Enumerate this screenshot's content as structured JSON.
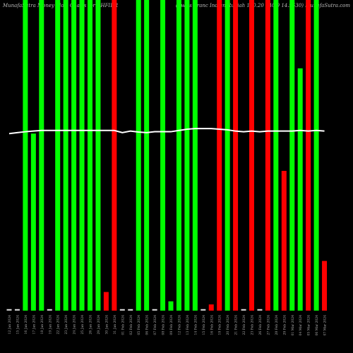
{
  "chart_data": {
    "type": "bar",
    "title": "MunafaSutra Money Flow Charts for CHFIDR",
    "subtitle": "(Swiss Franc Indian Rupiah 140.20 140.0 14.9530) MunafaSutra.com",
    "categories": [
      "12 Jan 2024",
      "15 Jan 2024",
      "16 Jan 2024",
      "17 Jan 2024",
      "18 Jan 2024",
      "19 Jan 2024",
      "22 Jan 2024",
      "23 Jan 2024",
      "24 Jan 2024",
      "25 Jan 2024",
      "26 Jan 2024",
      "29 Jan 2024",
      "30 Jan 2024",
      "31 Jan 2024",
      "01 Feb 2024",
      "02 Feb 2024",
      "05 Feb 2024",
      "06 Feb 2024",
      "07 Feb 2024",
      "08 Feb 2024",
      "09 Feb 2024",
      "12 Feb 2024",
      "13 Feb 2024",
      "14 Feb 2024",
      "15 Feb 2024",
      "16 Feb 2024",
      "19 Feb 2024",
      "20 Feb 2024",
      "21 Feb 2024",
      "22 Feb 2024",
      "23 Feb 2024",
      "26 Feb 2024",
      "27 Feb 2024",
      "28 Feb 2024",
      "29 Feb 2024",
      "01 Mar 2024",
      "04 Mar 2024",
      "05 Mar 2024",
      "06 Mar 2024",
      "07 Mar 2024"
    ],
    "values": [
      0.5,
      0.5,
      100,
      57,
      100,
      0.5,
      100,
      100,
      100,
      100,
      100,
      100,
      6,
      100,
      0.5,
      0.5,
      100,
      100,
      0.5,
      100,
      3,
      100,
      100,
      100,
      0.5,
      2,
      100,
      100,
      100,
      0.5,
      100,
      0.5,
      100,
      100,
      45,
      100,
      78,
      100,
      100,
      16
    ],
    "colors": [
      "#cccccc",
      "#cccccc",
      "#00ff00",
      "#00ff00",
      "#00ff00",
      "#cccccc",
      "#00ff00",
      "#00ff00",
      "#00ff00",
      "#00ff00",
      "#00ff00",
      "#00ff00",
      "#ff0000",
      "#ff0000",
      "#cccccc",
      "#cccccc",
      "#00ff00",
      "#00ff00",
      "#cccccc",
      "#00ff00",
      "#00ff00",
      "#00ff00",
      "#00ff00",
      "#00ff00",
      "#cccccc",
      "#ff0000",
      "#ff0000",
      "#00ff00",
      "#ff0000",
      "#cccccc",
      "#ff0000",
      "#cccccc",
      "#ff0000",
      "#00ff00",
      "#ff0000",
      "#00ff00",
      "#00ff00",
      "#ff0000",
      "#00ff00",
      "#ff0000"
    ],
    "line": {
      "color": "#ffffff",
      "values": [
        57,
        57.3,
        57.6,
        57.8,
        58,
        58,
        58,
        58,
        58,
        58,
        58,
        58,
        58,
        58,
        57.3,
        57.8,
        57.5,
        57.3,
        57.6,
        57.6,
        57.6,
        58,
        58.4,
        58.6,
        58.6,
        58.6,
        58.4,
        58.2,
        57.8,
        57.6,
        57.8,
        57.6,
        57.8,
        57.8,
        57.8,
        57.8,
        58,
        57.8,
        58,
        57.8
      ]
    },
    "ylim": [
      0,
      100
    ]
  }
}
